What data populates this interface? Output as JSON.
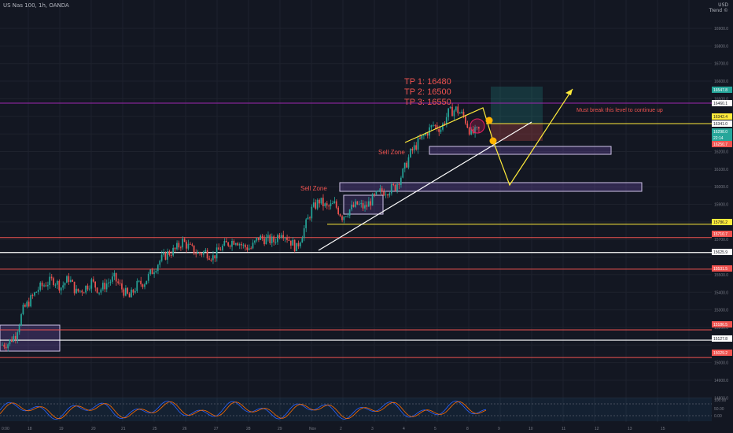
{
  "header": {
    "symbol_line": "US Nas 100, 1h, OANDA",
    "currency": "USD",
    "currency_sub": "Trend ©"
  },
  "price_axis": {
    "ticks": [
      "16900.0",
      "16800.0",
      "16700.0",
      "16600.0",
      "16500.0",
      "16200.0",
      "16100.0",
      "16000.0",
      "15900.0",
      "15700.0",
      "15500.0",
      "15400.0",
      "15300.0",
      "15200.0",
      "15000.0",
      "14900.0",
      "14800.0"
    ],
    "labels": [
      {
        "text": "16547.8",
        "color": "#26a69a"
      },
      {
        "text": "16460.1",
        "color": "#ffffff"
      },
      {
        "text": "16342.4",
        "color": "#ffeb3b"
      },
      {
        "text": "16341.0",
        "color": "#ffffff"
      },
      {
        "text": "16298.0",
        "color": "#26a69a"
      },
      {
        "text": "22:14",
        "color": "#26a69a"
      },
      {
        "text": "16250.7",
        "color": "#ef5350"
      },
      {
        "text": "15786.2",
        "color": "#ffeb3b"
      },
      {
        "text": "15710.7",
        "color": "#ef5350"
      },
      {
        "text": "15625.9",
        "color": "#ffffff"
      },
      {
        "text": "15531.5",
        "color": "#ef5350"
      },
      {
        "text": "15186.5",
        "color": "#ef5350"
      },
      {
        "text": "15127.8",
        "color": "#ffffff"
      },
      {
        "text": "15029.2",
        "color": "#ef5350"
      }
    ]
  },
  "time_axis": {
    "labels": [
      "0:00",
      "18",
      "19",
      "20",
      "21",
      "25",
      "26",
      "27",
      "28",
      "29",
      "Nov",
      "2",
      "3",
      "4",
      "5",
      "8",
      "9",
      "10",
      "11",
      "12",
      "13",
      "15"
    ]
  },
  "osc_axis": {
    "ticks": [
      "100.00",
      "50.00",
      "0.00"
    ]
  },
  "annotations": {
    "tp1": "TP 1: 16480",
    "tp2": "TP 2: 16500",
    "tp3": "TP 3: 16550",
    "note": "Must break this level to continue up",
    "sell_zone_1": "Sell Zone",
    "sell_zone_2": "Sell Zone"
  },
  "colors": {
    "background": "#131722",
    "up": "#26a69a",
    "down": "#ef5350",
    "accent_yellow": "#ffeb3b",
    "zone_purple": "#7e57c2",
    "trend_white": "#ffffff"
  },
  "chart_data": {
    "type": "candlestick",
    "symbol": "US Nas 100",
    "interval": "1h",
    "ylim": [
      14800,
      16900
    ],
    "levels": [
      {
        "value": 16460.1,
        "color": "purple"
      },
      {
        "value": 16342.4,
        "color": "yellow"
      },
      {
        "value": 15786.2,
        "color": "yellow"
      },
      {
        "value": 15710.7,
        "color": "red"
      },
      {
        "value": 15625.9,
        "color": "white"
      },
      {
        "value": 15531.5,
        "color": "red"
      },
      {
        "value": 15186.5,
        "color": "red"
      },
      {
        "value": 15127.8,
        "color": "white"
      },
      {
        "value": 15029.2,
        "color": "red"
      }
    ],
    "close_path": [
      15100,
      15110,
      15160,
      15300,
      15360,
      15420,
      15450,
      15470,
      15430,
      15480,
      15400,
      15420,
      15460,
      15410,
      15450,
      15480,
      15420,
      15370,
      15440,
      15460,
      15520,
      15580,
      15620,
      15640,
      15690,
      15650,
      15620,
      15630,
      15600,
      15650,
      15680,
      15700,
      15660,
      15650,
      15710,
      15700,
      15690,
      15750,
      15700,
      15650,
      15760,
      15870,
      15920,
      15880,
      15900,
      15830,
      15870,
      15900,
      15880,
      15930,
      15970,
      15980,
      16000,
      16080,
      16190,
      16250,
      16300,
      16350,
      16330,
      16420,
      16440,
      16400,
      16300,
      16320
    ],
    "oscillator": {
      "name": "Stochastic RSI",
      "range": [
        0,
        100
      ]
    }
  }
}
